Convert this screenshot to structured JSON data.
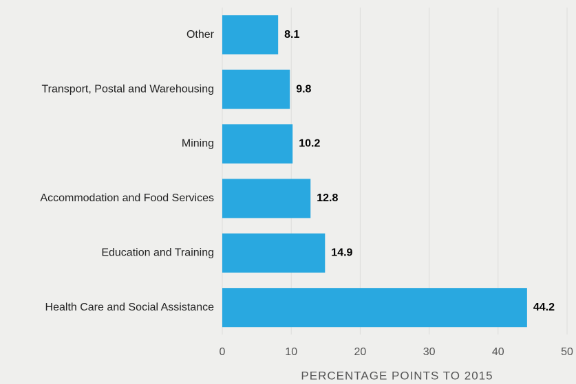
{
  "chart_data": {
    "type": "bar",
    "orientation": "horizontal",
    "categories": [
      "Other",
      "Transport, Postal and Warehousing",
      "Mining",
      "Accommodation and Food Services",
      "Education and Training",
      "Health Care and Social Assistance"
    ],
    "values": [
      8.1,
      9.8,
      10.2,
      12.8,
      14.9,
      44.2
    ],
    "color": "#29a8e0",
    "xlabel": "PERCENTAGE POINTS TO 2015",
    "xlim": [
      0,
      50
    ],
    "xticks": [
      0,
      10,
      20,
      30,
      40,
      50
    ],
    "grid": true
  }
}
